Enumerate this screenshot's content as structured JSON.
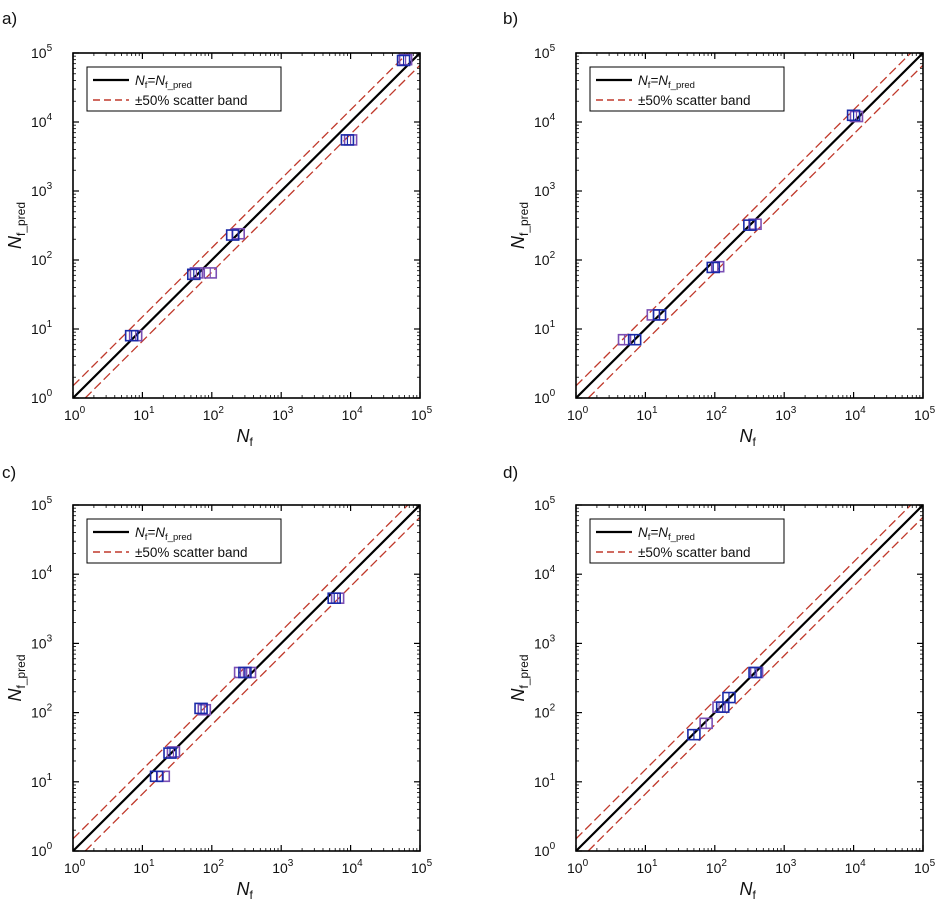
{
  "chart_data": [
    {
      "panel_label": "a)",
      "type": "scatter",
      "xlabel": "N",
      "xlabel_sub": "f",
      "ylabel": "N",
      "ylabel_sub": "f_pred",
      "xscale": "log",
      "yscale": "log",
      "xlim": [
        1,
        100000
      ],
      "ylim": [
        1,
        100000
      ],
      "legend_placement": "top-left",
      "legend": [
        {
          "main": "N",
          "sub1": "f",
          "eq": "=N",
          "sub2": "f_pred",
          "style": "solid",
          "color": "#000000"
        },
        {
          "text": "±50% scatter band",
          "style": "dashed",
          "color": "#c0392b"
        }
      ],
      "series": [
        {
          "kind": "purple",
          "color": "#7b4fb5",
          "points": [
            [
              8,
              8
            ],
            [
              60,
              65
            ],
            [
              95,
              65
            ],
            [
              240,
              240
            ],
            [
              10000,
              5500
            ],
            [
              62000,
              80000
            ]
          ]
        },
        {
          "kind": "blue",
          "color": "#1a2aa8",
          "points": [
            [
              7,
              8
            ],
            [
              55,
              62
            ],
            [
              200,
              230
            ],
            [
              9000,
              5500
            ],
            [
              58000,
              78000
            ]
          ]
        }
      ]
    },
    {
      "panel_label": "b)",
      "type": "scatter",
      "xlabel": "N",
      "xlabel_sub": "f",
      "ylabel": "N",
      "ylabel_sub": "f_pred",
      "xscale": "log",
      "yscale": "log",
      "xlim": [
        1,
        100000
      ],
      "ylim": [
        1,
        100000
      ],
      "legend_placement": "top-left",
      "legend": [
        {
          "main": "N",
          "sub1": "f",
          "eq": "=N",
          "sub2": "f_pred",
          "style": "solid",
          "color": "#000000"
        },
        {
          "text": "±50% scatter band",
          "style": "dashed",
          "color": "#c0392b"
        }
      ],
      "series": [
        {
          "kind": "purple",
          "color": "#7b4fb5",
          "points": [
            [
              5,
              7
            ],
            [
              13,
              16
            ],
            [
              110,
              80
            ],
            [
              380,
              330
            ],
            [
              11000,
              12000
            ]
          ]
        },
        {
          "kind": "blue",
          "color": "#1a2aa8",
          "points": [
            [
              7,
              7
            ],
            [
              16,
              16
            ],
            [
              95,
              78
            ],
            [
              320,
              320
            ],
            [
              10000,
              12500
            ]
          ]
        }
      ]
    },
    {
      "panel_label": "c)",
      "type": "scatter",
      "xlabel": "N",
      "xlabel_sub": "f",
      "ylabel": "N",
      "ylabel_sub": "f_pred",
      "xscale": "log",
      "yscale": "log",
      "xlim": [
        1,
        100000
      ],
      "ylim": [
        1,
        100000
      ],
      "legend_placement": "top-left",
      "legend": [
        {
          "main": "N",
          "sub1": "f",
          "eq": "=N",
          "sub2": "f_pred",
          "style": "solid",
          "color": "#000000"
        },
        {
          "text": "±50% scatter band",
          "style": "dashed",
          "color": "#c0392b"
        }
      ],
      "series": [
        {
          "kind": "purple",
          "color": "#7b4fb5",
          "points": [
            [
              20,
              12
            ],
            [
              28,
              27
            ],
            [
              78,
              110
            ],
            [
              260,
              380
            ],
            [
              350,
              380
            ],
            [
              6500,
              4500
            ]
          ]
        },
        {
          "kind": "blue",
          "color": "#1a2aa8",
          "points": [
            [
              16,
              12
            ],
            [
              25,
              26
            ],
            [
              70,
              115
            ],
            [
              300,
              380
            ],
            [
              5800,
              4500
            ]
          ]
        }
      ]
    },
    {
      "panel_label": "d)",
      "type": "scatter",
      "xlabel": "N",
      "xlabel_sub": "f",
      "ylabel": "N",
      "ylabel_sub": "f_pred",
      "xscale": "log",
      "yscale": "log",
      "xlim": [
        1,
        100000
      ],
      "ylim": [
        1,
        100000
      ],
      "legend_placement": "top-left",
      "legend": [
        {
          "main": "N",
          "sub1": "f",
          "eq": "=N",
          "sub2": "f_pred",
          "style": "solid",
          "color": "#000000"
        },
        {
          "text": "±50% scatter band",
          "style": "dashed",
          "color": "#c0392b"
        }
      ],
      "series": [
        {
          "kind": "purple",
          "color": "#7b4fb5",
          "points": [
            [
              75,
              70
            ],
            [
              115,
              120
            ],
            [
              400,
              380
            ]
          ]
        },
        {
          "kind": "blue",
          "color": "#1a2aa8",
          "points": [
            [
              50,
              48
            ],
            [
              130,
              120
            ],
            [
              160,
              165
            ],
            [
              380,
              380
            ]
          ]
        }
      ]
    }
  ],
  "tick_labels": [
    "10",
    "10",
    "10",
    "10",
    "10",
    "10"
  ],
  "tick_exponents": [
    "0",
    "1",
    "2",
    "3",
    "4",
    "5"
  ]
}
